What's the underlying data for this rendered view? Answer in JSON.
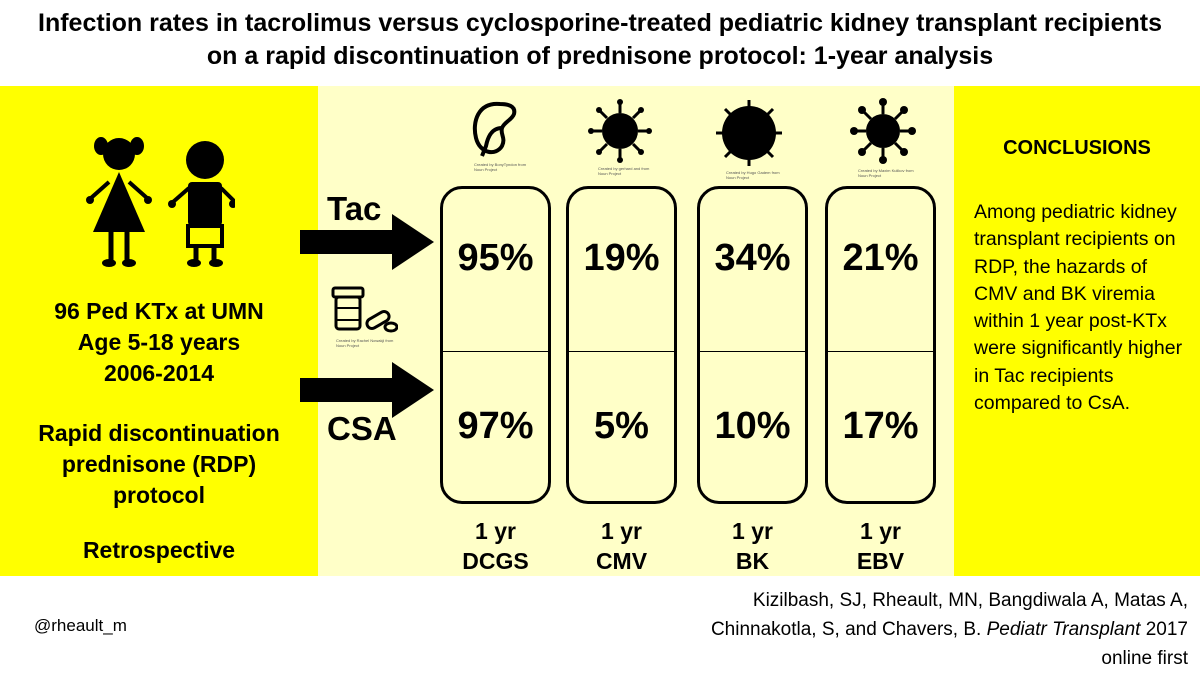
{
  "title": {
    "line1": "Infection rates in tacrolimus versus cyclosporine-treated pediatric kidney transplant recipients",
    "line2": "on a rapid discontinuation of prednisone protocol: 1-year analysis"
  },
  "left_panel": {
    "cohort_line1": "96 Ped KTx at UMN",
    "cohort_line2": "Age 5-18 years",
    "cohort_line3": "2006-2014",
    "protocol_line1": "Rapid discontinuation",
    "protocol_line2": "prednisone (RDP)",
    "protocol_line3": "protocol",
    "design": "Retrospective",
    "medication_icon_credit": "Created by Rachel Nowakji from Noun Project"
  },
  "arms": {
    "tac_label": "Tac",
    "csa_label": "CSA"
  },
  "results": [
    {
      "icon": "kidney-icon",
      "icon_credit": "Created by BonyTyndon from Noun Project",
      "tac": "95%",
      "csa": "97%",
      "label_line1": "1 yr",
      "label_line2": "DCGS"
    },
    {
      "icon": "virus-icon",
      "icon_credit": "Created by gerhard and from Noun Project",
      "tac": "19%",
      "csa": "5%",
      "label_line1": "1 yr",
      "label_line2": "CMV"
    },
    {
      "icon": "virus-icon",
      "icon_credit": "Created by Hugo Gadem from Noun Project",
      "tac": "34%",
      "csa": "10%",
      "label_line1": "1 yr",
      "label_line2": "BK"
    },
    {
      "icon": "virus-icon",
      "icon_credit": "Created by Maxim Kulikov from Noun Project",
      "tac": "21%",
      "csa": "17%",
      "label_line1": "1 yr",
      "label_line2": "EBV"
    }
  ],
  "conclusions": {
    "heading": "CONCLUSIONS",
    "body": "Among pediatric kidney transplant recipients on RDP, the hazards of CMV and BK viremia within 1 year post-KTx were significantly higher in Tac recipients compared to CsA."
  },
  "footer": {
    "handle": "@rheault_m",
    "citation_authors_line1": "Kizilbash, SJ, Rheault, MN, Bangdiwala A, Matas A,",
    "citation_authors_line2": "Chinnakotla, S, and Chavers, B.",
    "citation_journal": "Pediatr Transplant",
    "citation_year": "2017",
    "citation_line3": "online first"
  },
  "colors": {
    "panel_yellow": "#ffff00",
    "panel_light_yellow": "#ffffc8",
    "ink": "#000000"
  }
}
